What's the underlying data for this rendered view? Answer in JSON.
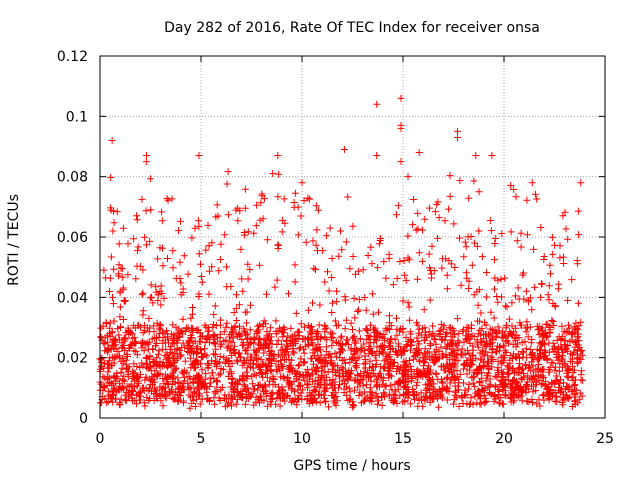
{
  "chart_data": {
    "type": "scatter",
    "title": "Day 282 of 2016, Rate Of TEC Index for receiver onsa",
    "xlabel": "GPS time / hours",
    "ylabel": "ROTI / TECUs",
    "xlim": [
      0,
      25
    ],
    "ylim": [
      0,
      0.12
    ],
    "xticks": [
      0,
      5,
      10,
      15,
      20,
      25
    ],
    "xtick_labels": [
      "0",
      "5",
      "10",
      "15",
      "20",
      "25"
    ],
    "yticks": [
      0,
      0.02,
      0.04,
      0.06,
      0.08,
      0.1,
      0.12
    ],
    "ytick_labels": [
      "0",
      "0.02",
      "0.04",
      "0.06",
      "0.08",
      "0.1",
      "0.12"
    ],
    "grid": true,
    "marker": "+",
    "series_color": "#ff0000",
    "grid_color": "#a0a0a0",
    "series": [
      {
        "name": "ROTI",
        "x_range": [
          0,
          23.9
        ],
        "typical_range": [
          0.005,
          0.03
        ],
        "envelope": [
          [
            0.0,
            0.045
          ],
          [
            0.3,
            0.06
          ],
          [
            0.6,
            0.09
          ],
          [
            1.0,
            0.065
          ],
          [
            1.5,
            0.06
          ],
          [
            2.2,
            0.087
          ],
          [
            3.0,
            0.07
          ],
          [
            3.7,
            0.081
          ],
          [
            4.2,
            0.062
          ],
          [
            4.9,
            0.087
          ],
          [
            5.5,
            0.065
          ],
          [
            6.2,
            0.085
          ],
          [
            7.0,
            0.086
          ],
          [
            7.5,
            0.07
          ],
          [
            8.2,
            0.077
          ],
          [
            8.8,
            0.087
          ],
          [
            9.3,
            0.069
          ],
          [
            9.9,
            0.078
          ],
          [
            10.5,
            0.08
          ],
          [
            11.1,
            0.07
          ],
          [
            11.6,
            0.07
          ],
          [
            12.1,
            0.089
          ],
          [
            12.7,
            0.062
          ],
          [
            13.3,
            0.067
          ],
          [
            14.0,
            0.07
          ],
          [
            14.5,
            0.065
          ],
          [
            15.1,
            0.082
          ],
          [
            15.7,
            0.087
          ],
          [
            16.3,
            0.075
          ],
          [
            16.9,
            0.081
          ],
          [
            17.5,
            0.083
          ],
          [
            18.0,
            0.079
          ],
          [
            18.6,
            0.087
          ],
          [
            19.2,
            0.06
          ],
          [
            19.7,
            0.087
          ],
          [
            20.3,
            0.079
          ],
          [
            20.9,
            0.072
          ],
          [
            21.5,
            0.078
          ],
          [
            22.1,
            0.063
          ],
          [
            22.7,
            0.061
          ],
          [
            23.2,
            0.076
          ],
          [
            23.8,
            0.078
          ]
        ],
        "outliers": [
          [
            0.6,
            0.092
          ],
          [
            2.3,
            0.087
          ],
          [
            4.9,
            0.087
          ],
          [
            8.8,
            0.087
          ],
          [
            12.1,
            0.089
          ],
          [
            13.7,
            0.104
          ],
          [
            13.7,
            0.087
          ],
          [
            14.9,
            0.106
          ],
          [
            14.9,
            0.097
          ],
          [
            14.9,
            0.096
          ],
          [
            14.9,
            0.085
          ],
          [
            15.8,
            0.088
          ],
          [
            17.7,
            0.095
          ],
          [
            17.7,
            0.093
          ],
          [
            18.6,
            0.087
          ],
          [
            19.4,
            0.087
          ],
          [
            21.4,
            0.078
          ],
          [
            23.8,
            0.078
          ]
        ]
      }
    ]
  }
}
